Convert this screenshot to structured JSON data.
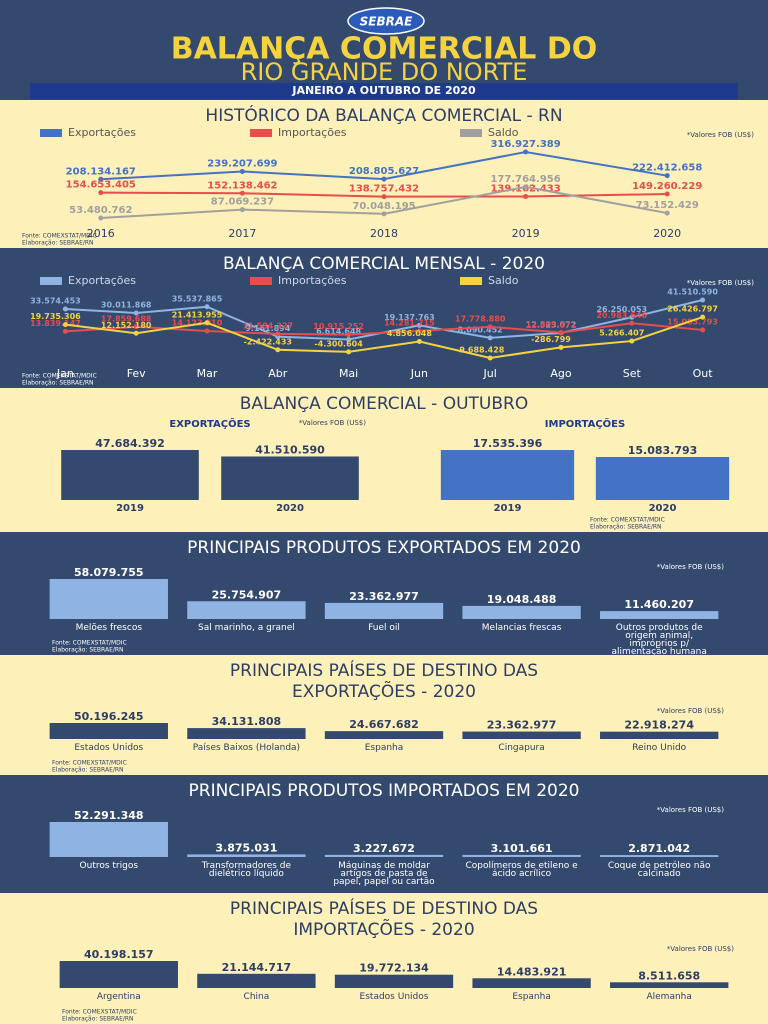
{
  "header": {
    "logo": "SEBRAE",
    "title": [
      "BALANÇA COMERCIAL DO",
      "RIO GRANDE DO NORTE"
    ],
    "subtitle": "JANEIRO A OUTUBRO DE 2020"
  },
  "chart_data": [
    {
      "type": "line",
      "title": [
        "HISTÓRICO DA BALANÇA COMERCIAL - RN"
      ],
      "note": "*Valores FOB (US$)",
      "source": [
        "Fonte: COMEXSTAT/MDIC",
        "Elaboração: SEBRAE/RN"
      ],
      "categories": [
        "2016",
        "2017",
        "2018",
        "2019",
        "2020"
      ],
      "series": [
        {
          "name": "Exportações",
          "color": "#4472c4",
          "values": [
            208134167,
            239207699,
            208805627,
            316927389,
            222412658
          ],
          "value_labels": [
            "208.134.167",
            "239.207.699",
            "208.805.627",
            "316.927.389",
            "222.412.658"
          ]
        },
        {
          "name": "Importações",
          "color": "#e84c4c",
          "values": [
            154653405,
            152138462,
            138757432,
            139162433,
            149260229
          ],
          "value_labels": [
            "154.653.405",
            "152.138.462",
            "138.757.432",
            "139.162.433",
            "149.260.229"
          ]
        },
        {
          "name": "Saldo",
          "color": "#a0a0a0",
          "values": [
            53480762,
            87069237,
            70048195,
            177764956,
            73152429
          ],
          "value_labels": [
            "53.480.762",
            "87.069.237",
            "70.048.195",
            "177.764.956",
            "73.152.429"
          ]
        }
      ]
    },
    {
      "type": "line",
      "title": [
        "BALANÇA COMERCIAL MENSAL - 2020"
      ],
      "note": "*Valores FOB (US$)",
      "source": [
        "Fonte: COMEXSTAT/MDIC",
        "Elaboração: SEBRAE/RN"
      ],
      "categories": [
        "Jan",
        "Fev",
        "Mar",
        "Abr",
        "Mai",
        "Jun",
        "Jul",
        "Ago",
        "Set",
        "Out"
      ],
      "series": [
        {
          "name": "Exportações",
          "color": "#8fb4e3",
          "values": [
            33574453,
            30011868,
            35537865,
            9161894,
            6614648,
            19137763,
            8090452,
            12523072,
            26250053,
            41510590
          ],
          "value_labels": [
            "33.574.453",
            "30.011.868",
            "35.537.865",
            "9.161.894",
            "6.614.648",
            "19.137.763",
            "8.090.452",
            "12.523.072",
            "26.250.053",
            "41.510.590"
          ]
        },
        {
          "name": "Importações",
          "color": "#e84c4c",
          "values": [
            13839147,
            17859688,
            14123910,
            11584327,
            10915252,
            14281715,
            17778880,
            12809871,
            20983646,
            15083793
          ],
          "value_labels": [
            "13.839.147",
            "17.859.688",
            "14.123.910",
            "11.584.327",
            "10.915.252",
            "14.281.715",
            "17.778.880",
            "12.809.871",
            "20.983.646",
            "15.083.793"
          ]
        },
        {
          "name": "Saldo",
          "color": "#f5d33f",
          "values": [
            19735306,
            12152180,
            21413955,
            -2422433,
            -4300604,
            4856048,
            -9688428,
            -286799,
            5266407,
            26426797
          ],
          "value_labels": [
            "19.735.306",
            "12.152.180",
            "21.413.955",
            "-2.422.433",
            "-4.300.604",
            "4.856.048",
            "-9.688.428",
            "-286.799",
            "5.266.407",
            "26.426.797"
          ]
        }
      ]
    },
    {
      "type": "bar",
      "title": [
        "BALANÇA COMERCIAL - OUTUBRO"
      ],
      "subtitle": "EXPORTAÇÕES",
      "note": "*Valores FOB (US$)",
      "color": "#34496e",
      "categories": [
        "2019",
        "2020"
      ],
      "values": [
        47684392,
        41510590
      ],
      "value_labels": [
        "47.684.392",
        "41.510.590"
      ]
    },
    {
      "type": "bar",
      "subtitle": "IMPORTAÇÕES",
      "source": [
        "Fonte: COMEXSTAT/MDIC",
        "Elaboração: SEBRAE/RN"
      ],
      "color": "#4472c4",
      "categories": [
        "2019",
        "2020"
      ],
      "values": [
        17535396,
        15083793
      ],
      "value_labels": [
        "17.535.396",
        "15.083.793"
      ]
    },
    {
      "type": "bar",
      "title": [
        "PRINCIPAIS PRODUTOS EXPORTADOS EM 2020"
      ],
      "note": "*Valores FOB (US$)",
      "source": [
        "Fonte: COMEXSTAT/MDIC",
        "Elaboração: SEBRAE/RN"
      ],
      "color": "#8fb4e3",
      "categories": [
        "Melões frescos",
        "Sal marinho, a granel",
        "Fuel oil",
        "Melancias frescas",
        "Outros produtos de origem animal, impróprios p/ alimentação humana"
      ],
      "values": [
        58079755,
        25754907,
        23362977,
        19048488,
        11460207
      ],
      "value_labels": [
        "58.079.755",
        "25.754.907",
        "23.362.977",
        "19.048.488",
        "11.460.207"
      ]
    },
    {
      "type": "bar",
      "title": [
        "PRINCIPAIS PAÍSES DE DESTINO DAS",
        "EXPORTAÇÕES - 2020"
      ],
      "note": "*Valores FOB (US$)",
      "source": [
        "Fonte: COMEXSTAT/MDIC",
        "Elaboração: SEBRAE/RN"
      ],
      "color": "#34496e",
      "categories": [
        "Estados Unidos",
        "Países Baixos (Holanda)",
        "Espanha",
        "Cingapura",
        "Reino Unido"
      ],
      "values": [
        50196245,
        34131808,
        24667682,
        23362977,
        22918274
      ],
      "value_labels": [
        "50.196.245",
        "34.131.808",
        "24.667.682",
        "23.362.977",
        "22.918.274"
      ]
    },
    {
      "type": "bar",
      "title": [
        "PRINCIPAIS PRODUTOS IMPORTADOS EM 2020"
      ],
      "note": "*Valores FOB (US$)",
      "color": "#8fb4e3",
      "categories": [
        "Outros trigos",
        "Transformadores de dielétrico líquido",
        "Máquinas de moldar artigos de pasta de papel, papel ou cartão",
        "Copolímeros de etileno e ácido acrílico",
        "Coque de petróleo não calcinado"
      ],
      "values": [
        52291348,
        3875031,
        3227672,
        3101661,
        2871042
      ],
      "value_labels": [
        "52.291.348",
        "3.875.031",
        "3.227.672",
        "3.101.661",
        "2.871.042"
      ]
    },
    {
      "type": "bar",
      "title": [
        "PRINCIPAIS PAÍSES DE DESTINO DAS",
        "IMPORTAÇÕES - 2020"
      ],
      "note": "*Valores FOB (US$)",
      "source": [
        "Fonte: COMEXSTAT/MDIC",
        "Elaboração: SEBRAE/RN"
      ],
      "color": "#34496e",
      "categories": [
        "Argentina",
        "China",
        "Estados Unidos",
        "Espanha",
        "Alemanha"
      ],
      "values": [
        40198157,
        21144717,
        19772134,
        14483921,
        8511658
      ],
      "value_labels": [
        "40.198.157",
        "21.144.717",
        "19.772.134",
        "14.483.921",
        "8.511.658"
      ]
    }
  ]
}
